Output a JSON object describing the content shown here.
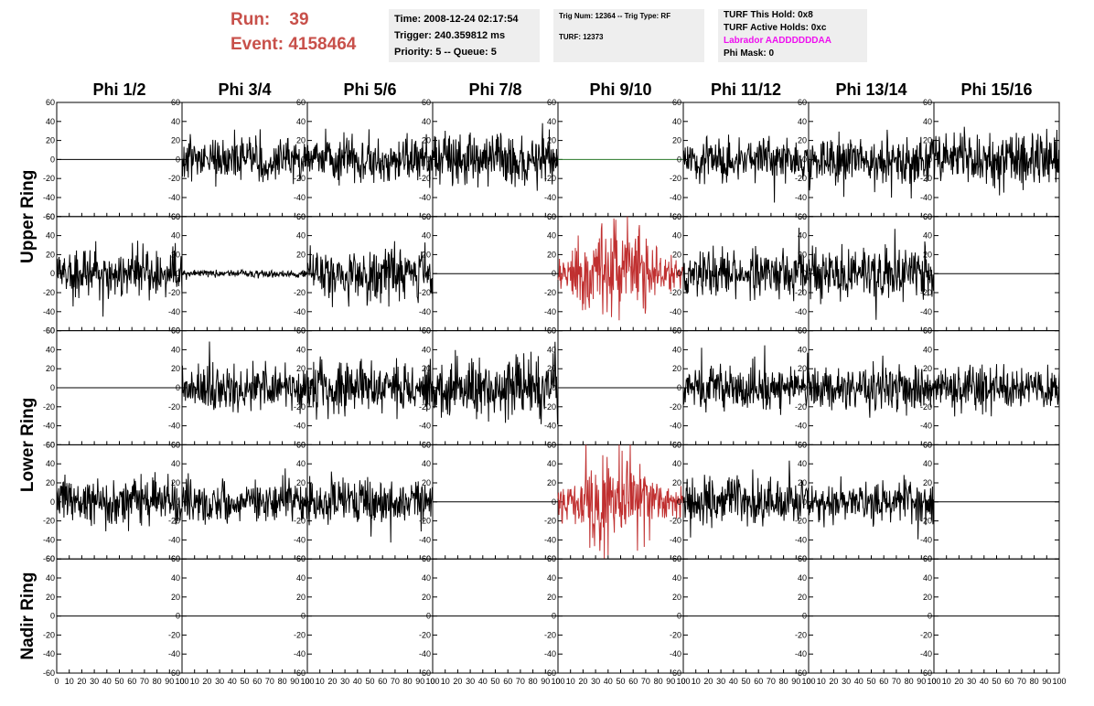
{
  "header": {
    "run_label": "Run:",
    "run_value": "39",
    "event_label": "Event:",
    "event_value": "4158464",
    "time": "Time: 2008-12-24 02:17:54",
    "trigger": "Trigger: 240.359812 ms",
    "priority": "Priority: 5 -- Queue: 5",
    "trig_num": "Trig Num: 12364 -- Trig Type: RF",
    "turf": "TURF: 12373",
    "turf_this_hold": "TURF This Hold: 0x8",
    "turf_active_holds": "TURF Active Holds: 0xc",
    "labrador": "Labrador AADDDDDDAA",
    "phi_mask": "Phi Mask: 0"
  },
  "chart_data": {
    "type": "line",
    "columns": [
      "Phi 1/2",
      "Phi 3/4",
      "Phi 5/6",
      "Phi 7/8",
      "Phi 9/10",
      "Phi 11/12",
      "Phi 13/14",
      "Phi 15/16"
    ],
    "ring_labels": [
      "Upper Ring",
      "Lower Ring",
      "Nadir Ring"
    ],
    "ylim": [
      -60,
      60
    ],
    "xlim": [
      0,
      100
    ],
    "y_ticks": [
      "-60",
      "-40",
      "-20",
      "0",
      "20",
      "40",
      "60"
    ],
    "x_ticks": [
      "0",
      "10",
      "20",
      "30",
      "40",
      "50",
      "60",
      "70",
      "80",
      "90",
      "100"
    ],
    "colors": {
      "normal": "#000000",
      "triggered": "#c03030",
      "flat_alt": "#2a7a2a"
    },
    "rows": [
      [
        "flat",
        "noise:13:1",
        "noise:13:2",
        "noise:15:3",
        "flat-green",
        "noise:12:4",
        "noise:13:5",
        "noise:15:6"
      ],
      [
        "noise:14:7",
        "noise:2:8",
        "noise:15:9",
        "flat",
        "burst:22:10",
        "noise:13:11",
        "noise:14:12",
        "flat"
      ],
      [
        "flat",
        "noise:13:13",
        "noise:15:14",
        "noise:17:15",
        "flat",
        "noise:12:16",
        "noise:13:17",
        "noise:12:18"
      ],
      [
        "noise:13:19",
        "noise:12:20",
        "noise:13:21",
        "flat",
        "burst:22:22",
        "noise:13:23",
        "noise:12:24",
        "flat"
      ],
      [
        "flat",
        "flat",
        "flat",
        "flat",
        "flat",
        "flat",
        "flat",
        "flat"
      ]
    ]
  }
}
